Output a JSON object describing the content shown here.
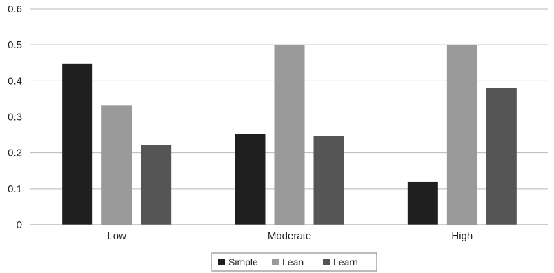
{
  "chart_data": {
    "type": "bar",
    "title": "",
    "xlabel": "",
    "ylabel": "",
    "categories": [
      "Low",
      "Moderate",
      "High"
    ],
    "series": [
      {
        "name": "Simple",
        "values": [
          0.447,
          0.253,
          0.119
        ],
        "color": "#1f1f1f"
      },
      {
        "name": "Lean",
        "values": [
          0.331,
          0.5,
          0.5
        ],
        "color": "#9a9a9a"
      },
      {
        "name": "Learn",
        "values": [
          0.222,
          0.247,
          0.381
        ],
        "color": "#555555"
      }
    ],
    "ylim": [
      0,
      0.6
    ],
    "yticks": [
      "0",
      "0.1",
      "0.2",
      "0.3",
      "0.4",
      "0.5",
      "0.6"
    ],
    "grid": true,
    "legend_position": "bottom"
  }
}
